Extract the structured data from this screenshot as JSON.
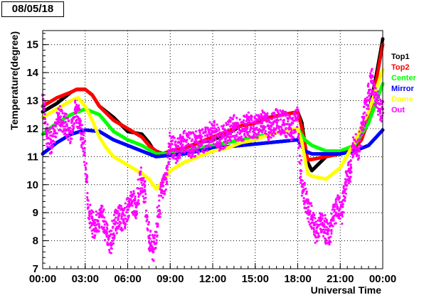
{
  "date_label": "08/05/18",
  "chart_data": {
    "type": "scatter",
    "title": "",
    "xlabel": "Universal Time",
    "ylabel": "Temperature(degree)",
    "xlim": [
      0,
      24
    ],
    "ylim": [
      7,
      15.5
    ],
    "x_ticks": [
      0,
      3,
      6,
      9,
      12,
      15,
      18,
      21,
      24
    ],
    "x_tick_labels": [
      "00:00",
      "03:00",
      "06:00",
      "09:00",
      "12:00",
      "15:00",
      "18:00",
      "21:00",
      "00:00"
    ],
    "y_ticks": [
      7,
      8,
      9,
      10,
      11,
      12,
      13,
      14,
      15
    ],
    "y_tick_labels": [
      "7",
      "8",
      "9",
      "10",
      "11",
      "12",
      "13",
      "14",
      "15"
    ],
    "grid": "dotted",
    "legend_position": "right",
    "series": [
      {
        "name": "Top1",
        "color": "#000000",
        "x": [
          0,
          1,
          2,
          2.4,
          3,
          3.5,
          4,
          5,
          6,
          7,
          7.5,
          8,
          8.5,
          9,
          10,
          11,
          12,
          13,
          14,
          15,
          16,
          17,
          18,
          18.3,
          18.7,
          19,
          20,
          21,
          22,
          22.5,
          23,
          23.5,
          24
        ],
        "y": [
          12.6,
          12.9,
          13.3,
          13.4,
          13.4,
          13.2,
          12.8,
          12.4,
          11.9,
          11.8,
          11.5,
          11.1,
          11.1,
          11.2,
          11.3,
          11.5,
          11.6,
          11.8,
          12.1,
          12.2,
          12.4,
          12.5,
          12.6,
          12.2,
          10.8,
          10.5,
          11.0,
          11.2,
          11.3,
          11.8,
          12.5,
          13.8,
          15.2
        ]
      },
      {
        "name": "Top2",
        "color": "#ff0000",
        "x": [
          0,
          1,
          2,
          2.4,
          3,
          3.5,
          4,
          5,
          6,
          7,
          7.5,
          8,
          8.5,
          9,
          10,
          11,
          12,
          13,
          14,
          15,
          16,
          17,
          18,
          18.3,
          18.7,
          19,
          20,
          21,
          22,
          22.5,
          23,
          23.5,
          24
        ],
        "y": [
          12.8,
          13.1,
          13.3,
          13.4,
          13.4,
          13.2,
          12.8,
          12.3,
          12.0,
          11.7,
          11.4,
          11.2,
          11.1,
          11.2,
          11.3,
          11.5,
          11.7,
          11.9,
          12.1,
          12.2,
          12.4,
          12.5,
          12.6,
          12.0,
          10.9,
          10.9,
          11.0,
          11.1,
          11.3,
          11.6,
          12.3,
          13.6,
          15.0
        ]
      },
      {
        "name": "Center",
        "color": "#00ff00",
        "x": [
          0,
          1,
          2,
          3,
          4,
          5,
          6,
          7,
          8,
          9,
          10,
          11,
          12,
          13,
          14,
          15,
          16,
          17,
          18,
          18.5,
          19,
          20,
          21,
          22,
          23,
          24
        ],
        "y": [
          11.8,
          12.2,
          12.5,
          12.7,
          12.5,
          11.9,
          11.6,
          11.4,
          11.1,
          11.1,
          11.2,
          11.3,
          11.4,
          11.5,
          11.6,
          11.7,
          11.8,
          11.9,
          12.0,
          11.6,
          11.4,
          11.2,
          11.2,
          11.4,
          12.2,
          13.6
        ]
      },
      {
        "name": "Mirror",
        "color": "#0000ff",
        "x": [
          0,
          1,
          2,
          3,
          4,
          5,
          6,
          7,
          8,
          9,
          10,
          11,
          12,
          13,
          14,
          15,
          16,
          17,
          18,
          18.5,
          19,
          20,
          21,
          22,
          23,
          24
        ],
        "y": [
          11.1,
          11.5,
          11.8,
          11.95,
          11.9,
          11.6,
          11.4,
          11.2,
          11.0,
          11.05,
          11.1,
          11.2,
          11.3,
          11.35,
          11.4,
          11.45,
          11.5,
          11.55,
          11.6,
          11.2,
          11.1,
          11.1,
          11.1,
          11.2,
          11.4,
          11.95
        ]
      },
      {
        "name": "Dome",
        "color": "#ffff00",
        "x": [
          0,
          1,
          2,
          2.5,
          3,
          3.5,
          4,
          4.5,
          5,
          6,
          7,
          7.5,
          8,
          8.5,
          9,
          10,
          11,
          12,
          13,
          14,
          15,
          16,
          17,
          18,
          18.3,
          18.7,
          19,
          20,
          21,
          22,
          23,
          24
        ],
        "y": [
          12.4,
          12.7,
          13.0,
          13.1,
          12.8,
          12.3,
          11.7,
          11.3,
          11.0,
          10.7,
          10.4,
          10.2,
          9.85,
          10.1,
          10.5,
          10.8,
          11.0,
          11.2,
          11.3,
          11.5,
          11.6,
          11.8,
          11.9,
          12.0,
          11.5,
          10.4,
          10.3,
          10.2,
          10.6,
          11.5,
          12.6,
          14.1
        ]
      },
      {
        "name": "Out",
        "color": "#ff00ff",
        "x": [
          0,
          0.3,
          0.6,
          0.9,
          1.2,
          1.5,
          2,
          2.3,
          2.6,
          2.9,
          3.1,
          3.3,
          3.6,
          3.9,
          4.2,
          4.5,
          4.8,
          5.1,
          5.4,
          5.7,
          6,
          6.3,
          6.6,
          6.9,
          7.2,
          7.5,
          7.8,
          8.1,
          8.4,
          8.7,
          9,
          9.5,
          10,
          10.5,
          11,
          11.5,
          12,
          12.5,
          13,
          13.5,
          14,
          14.5,
          15,
          15.5,
          16,
          16.5,
          17,
          17.5,
          18,
          18.2,
          18.4,
          18.6,
          18.8,
          19,
          19.3,
          19.6,
          19.9,
          20.2,
          20.5,
          20.8,
          21.1,
          21.4,
          21.7,
          22,
          22.3,
          22.6,
          22.9,
          23.2,
          23.5,
          23.8,
          24
        ],
        "y": [
          13.2,
          11.8,
          11.5,
          12.1,
          12.4,
          12.2,
          11.9,
          12.7,
          12.3,
          11.5,
          10.1,
          9.0,
          8.4,
          8.7,
          8.9,
          8.3,
          7.9,
          8.6,
          8.9,
          8.7,
          9.1,
          9.4,
          9.2,
          10.2,
          9.8,
          8.1,
          7.6,
          8.6,
          9.8,
          10.2,
          11.4,
          11.2,
          11.6,
          11.4,
          11.5,
          11.6,
          11.9,
          11.6,
          11.8,
          12.1,
          11.9,
          12.2,
          12.0,
          12.3,
          12.0,
          12.3,
          12.2,
          12.0,
          12.4,
          10.5,
          9.8,
          9.4,
          9.0,
          8.8,
          8.3,
          8.7,
          8.5,
          8.1,
          8.8,
          9.2,
          9.0,
          10.1,
          10.5,
          11.6,
          11.3,
          12.2,
          13.0,
          13.7,
          13.2,
          12.7,
          12.7
        ]
      }
    ]
  }
}
